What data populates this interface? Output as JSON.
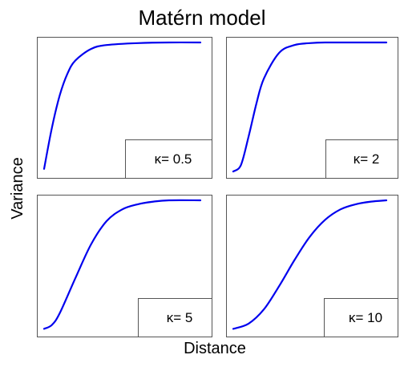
{
  "chart_data": {
    "type": "line",
    "title": "Matérn model",
    "xlabel": "Distance",
    "ylabel": "Variance",
    "panels": [
      {
        "label": "κ= 0.5",
        "kappa": 0.5,
        "series": [
          {
            "x": [
              0.0,
              0.05,
              0.1,
              0.15,
              0.2,
              0.3,
              0.4,
              0.6,
              0.8,
              1.0
            ],
            "y": [
              0.02,
              0.34,
              0.59,
              0.76,
              0.86,
              0.95,
              0.98,
              0.995,
              1.0,
              1.0
            ]
          }
        ]
      },
      {
        "label": "κ= 2",
        "kappa": 2,
        "series": [
          {
            "x": [
              0.0,
              0.05,
              0.1,
              0.15,
              0.2,
              0.3,
              0.4,
              0.5,
              0.6,
              0.8,
              1.0
            ],
            "y": [
              0.0,
              0.05,
              0.27,
              0.52,
              0.72,
              0.92,
              0.98,
              0.995,
              1.0,
              1.0,
              1.0
            ]
          }
        ]
      },
      {
        "label": "κ= 5",
        "kappa": 5,
        "series": [
          {
            "x": [
              0.0,
              0.05,
              0.1,
              0.2,
              0.3,
              0.4,
              0.5,
              0.6,
              0.7,
              0.8,
              1.0
            ],
            "y": [
              0.01,
              0.04,
              0.13,
              0.4,
              0.66,
              0.84,
              0.93,
              0.97,
              0.99,
              1.0,
              1.0
            ]
          }
        ]
      },
      {
        "label": "κ= 10",
        "kappa": 10,
        "series": [
          {
            "x": [
              0.0,
              0.1,
              0.2,
              0.3,
              0.4,
              0.5,
              0.6,
              0.7,
              0.8,
              0.9,
              1.0
            ],
            "y": [
              0.01,
              0.05,
              0.16,
              0.34,
              0.54,
              0.72,
              0.85,
              0.93,
              0.97,
              0.99,
              1.0
            ]
          }
        ]
      }
    ],
    "xlim": [
      0,
      1
    ],
    "ylim": [
      0,
      1
    ],
    "line_color": "#0000ee",
    "grid": false,
    "legend": "bottom-right box in each panel"
  }
}
